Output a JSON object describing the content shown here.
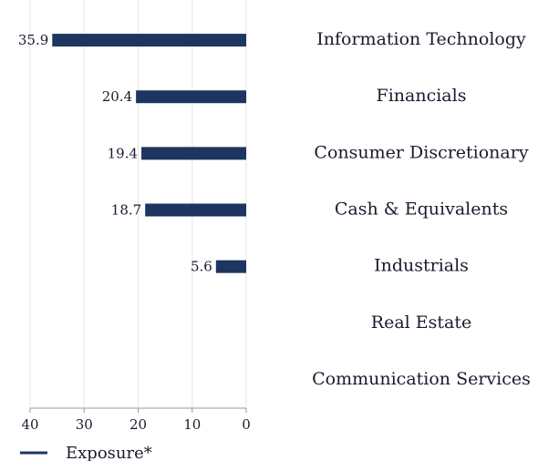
{
  "chart_data": {
    "type": "barh",
    "categories": [
      "Information Technology",
      "Financials",
      "Consumer Discretionary",
      "Cash & Equivalents",
      "Industrials",
      "Real Estate",
      "Communication Services"
    ],
    "series": [
      {
        "name": "Exposure*",
        "color": "#1d3660",
        "values": [
          35.9,
          20.4,
          19.4,
          18.7,
          5.6,
          null,
          null
        ]
      }
    ],
    "xlim": [
      40,
      0
    ],
    "xticks": [
      40,
      30,
      20,
      10,
      0
    ],
    "grid": true,
    "legend": "bottom-left"
  }
}
